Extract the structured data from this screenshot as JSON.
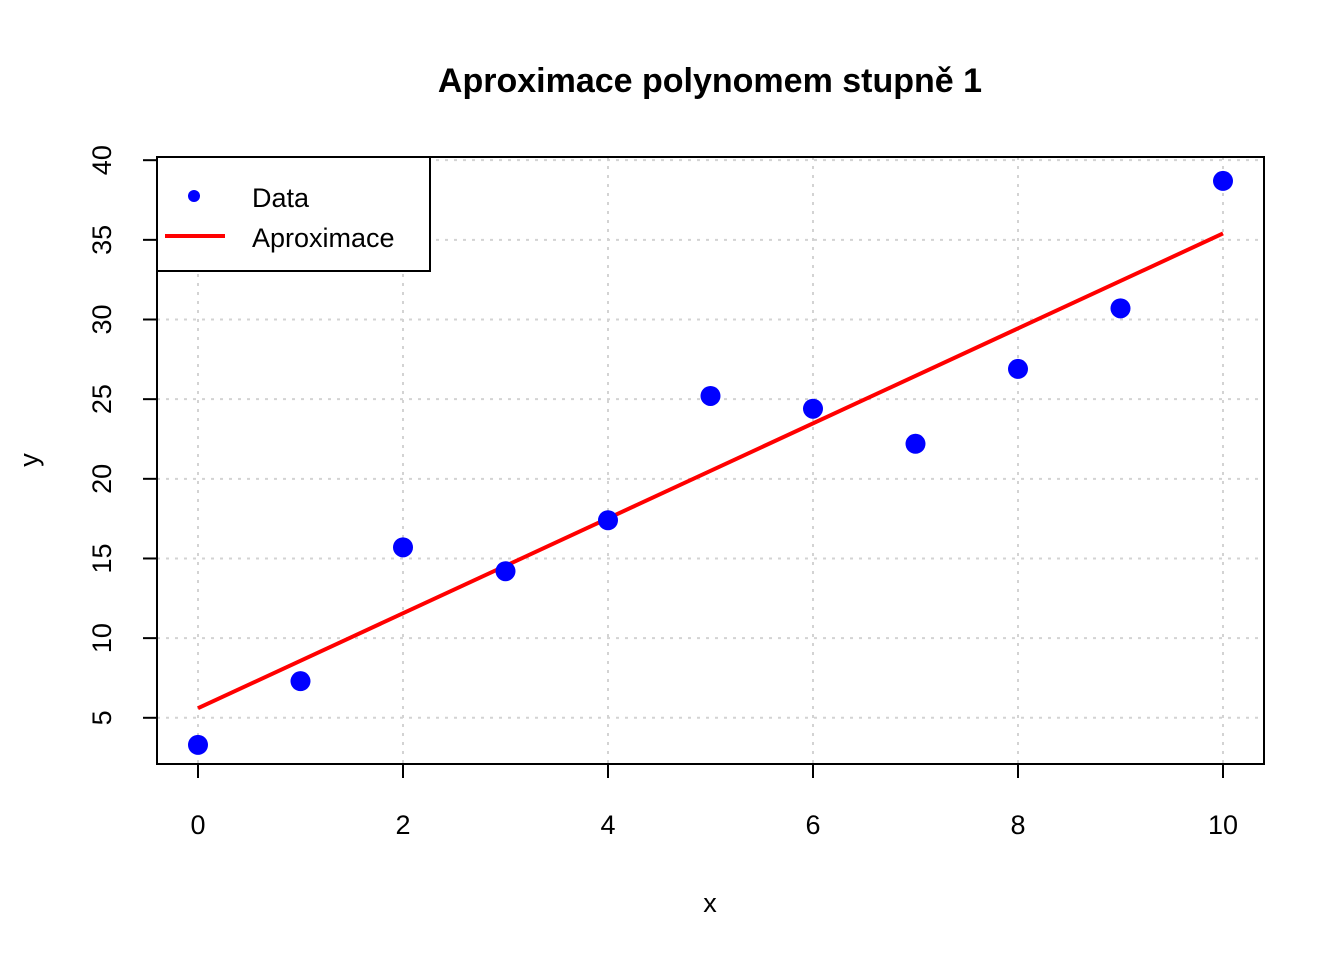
{
  "chart_data": {
    "type": "scatter",
    "title": "Aproximace polynomem stupně 1",
    "xlabel": "x",
    "ylabel": "y",
    "xlim": [
      -0.4,
      10.4
    ],
    "ylim": [
      2.1,
      40.2
    ],
    "xticks": [
      0,
      2,
      4,
      6,
      8,
      10
    ],
    "yticks": [
      5,
      10,
      15,
      20,
      25,
      30,
      35,
      40
    ],
    "xtick_labels": [
      "0",
      "2",
      "4",
      "6",
      "8",
      "10"
    ],
    "ytick_labels": [
      "5",
      "10",
      "15",
      "20",
      "25",
      "30",
      "35",
      "40"
    ],
    "grid": true,
    "legend_position": "top-left",
    "series": [
      {
        "name": "Data",
        "kind": "points",
        "color": "#0000ff",
        "x": [
          0,
          1,
          2,
          3,
          4,
          5,
          6,
          7,
          8,
          9,
          10
        ],
        "y": [
          3.3,
          7.3,
          15.7,
          14.2,
          17.4,
          25.2,
          24.4,
          22.2,
          26.9,
          30.7,
          38.7
        ]
      },
      {
        "name": "Aproximace",
        "kind": "line",
        "color": "#ff0000",
        "x": [
          0,
          10
        ],
        "y": [
          5.6,
          35.4
        ]
      }
    ]
  }
}
